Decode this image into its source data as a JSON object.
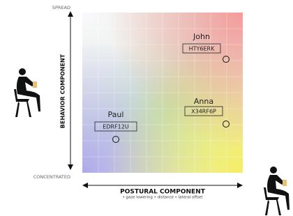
{
  "axes": {
    "y_top": "SPREAD",
    "y_bottom": "CONCENTRATED",
    "y_label": "BEHAVIOR COMPONENT",
    "x_label": "POSTURAL COMPONENT",
    "x_sublabel": "• gaze lowering • distance • lateral offset"
  },
  "people": [
    {
      "name": "John",
      "code": "HTY6ERK"
    },
    {
      "name": "Anna",
      "code": "X34RF6P"
    },
    {
      "name": "Paul",
      "code": "EDRF12U"
    }
  ]
}
